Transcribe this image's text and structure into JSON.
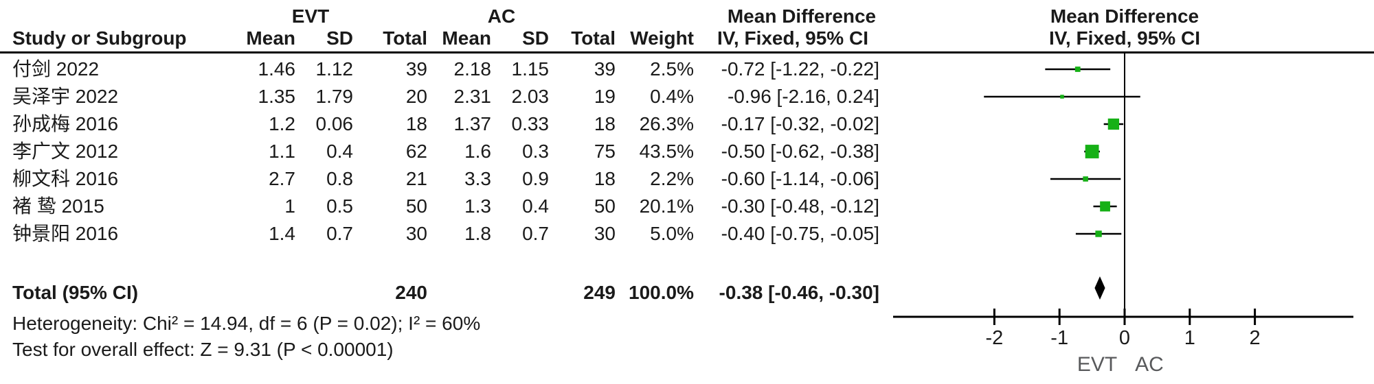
{
  "header": {
    "group_evt": "EVT",
    "group_ac": "AC",
    "effect_label_left": "Mean Difference",
    "effect_label_right": "Mean Difference",
    "study_col": "Study or Subgroup",
    "evt_mean_col": "Mean",
    "evt_sd_col": "SD",
    "evt_total_col": "Total",
    "ac_mean_col": "Mean",
    "ac_sd_col": "SD",
    "ac_total_col": "Total",
    "weight_col": "Weight",
    "ci_col_left": "IV, Fixed, 95% CI",
    "ci_col_right": "IV, Fixed, 95% CI"
  },
  "footnotes": {
    "heterogeneity": "Heterogeneity: Chi² = 14.94, df = 6 (P = 0.02); I² = 60%",
    "overall_effect": "Test for overall effect: Z = 9.31 (P < 0.00001)"
  },
  "colors": {
    "marker_green": "#16b016",
    "diamond_black": "#000000",
    "axis_black": "#000000",
    "favours_gray": "#58595b"
  },
  "chart_data": {
    "type": "scatter",
    "subtype": "forest-plot",
    "title": "Mean Difference",
    "effect_model": "IV, Fixed, 95% CI",
    "x_ticks": [
      -2,
      -1,
      0,
      1,
      2
    ],
    "xlim": [
      -3.55,
      3.5
    ],
    "x_axis_left_label": "EVT",
    "x_axis_right_label": "AC",
    "studies": [
      {
        "name": "付剑 2022",
        "evt_mean": "1.46",
        "evt_sd": "1.12",
        "evt_total": "39",
        "ac_mean": "2.18",
        "ac_sd": "1.15",
        "ac_total": "39",
        "weight": "2.5%",
        "ci_text": "-0.72 [-1.22, -0.22]",
        "md": -0.72,
        "ci": [
          -1.22,
          -0.22
        ],
        "weight_pct": 2.5
      },
      {
        "name": "吴泽宇 2022",
        "evt_mean": "1.35",
        "evt_sd": "1.79",
        "evt_total": "20",
        "ac_mean": "2.31",
        "ac_sd": "2.03",
        "ac_total": "19",
        "weight": "0.4%",
        "ci_text": "-0.96 [-2.16, 0.24]",
        "md": -0.96,
        "ci": [
          -2.16,
          0.24
        ],
        "weight_pct": 0.4
      },
      {
        "name": "孙成梅 2016",
        "evt_mean": "1.2",
        "evt_sd": "0.06",
        "evt_total": "18",
        "ac_mean": "1.37",
        "ac_sd": "0.33",
        "ac_total": "18",
        "weight": "26.3%",
        "ci_text": "-0.17 [-0.32, -0.02]",
        "md": -0.17,
        "ci": [
          -0.32,
          -0.02
        ],
        "weight_pct": 26.3
      },
      {
        "name": "李广文 2012",
        "evt_mean": "1.1",
        "evt_sd": "0.4",
        "evt_total": "62",
        "ac_mean": "1.6",
        "ac_sd": "0.3",
        "ac_total": "75",
        "weight": "43.5%",
        "ci_text": "-0.50 [-0.62, -0.38]",
        "md": -0.5,
        "ci": [
          -0.62,
          -0.38
        ],
        "weight_pct": 43.5
      },
      {
        "name": "柳文科 2016",
        "evt_mean": "2.7",
        "evt_sd": "0.8",
        "evt_total": "21",
        "ac_mean": "3.3",
        "ac_sd": "0.9",
        "ac_total": "18",
        "weight": "2.2%",
        "ci_text": "-0.60 [-1.14, -0.06]",
        "md": -0.6,
        "ci": [
          -1.14,
          -0.06
        ],
        "weight_pct": 2.2
      },
      {
        "name": "褚 鸷 2015",
        "evt_mean": "1",
        "evt_sd": "0.5",
        "evt_total": "50",
        "ac_mean": "1.3",
        "ac_sd": "0.4",
        "ac_total": "50",
        "weight": "20.1%",
        "ci_text": "-0.30 [-0.48, -0.12]",
        "md": -0.3,
        "ci": [
          -0.48,
          -0.12
        ],
        "weight_pct": 20.1
      },
      {
        "name": "钟景阳 2016",
        "evt_mean": "1.4",
        "evt_sd": "0.7",
        "evt_total": "30",
        "ac_mean": "1.8",
        "ac_sd": "0.7",
        "ac_total": "30",
        "weight": "5.0%",
        "ci_text": "-0.40 [-0.75, -0.05]",
        "md": -0.4,
        "ci": [
          -0.75,
          -0.05
        ],
        "weight_pct": 5.0
      }
    ],
    "total": {
      "label": "Total (95% CI)",
      "evt_total": "240",
      "ac_total": "249",
      "weight": "100.0%",
      "ci_text": "-0.38 [-0.46, -0.30]",
      "md": -0.38,
      "ci": [
        -0.46,
        -0.3
      ]
    }
  }
}
